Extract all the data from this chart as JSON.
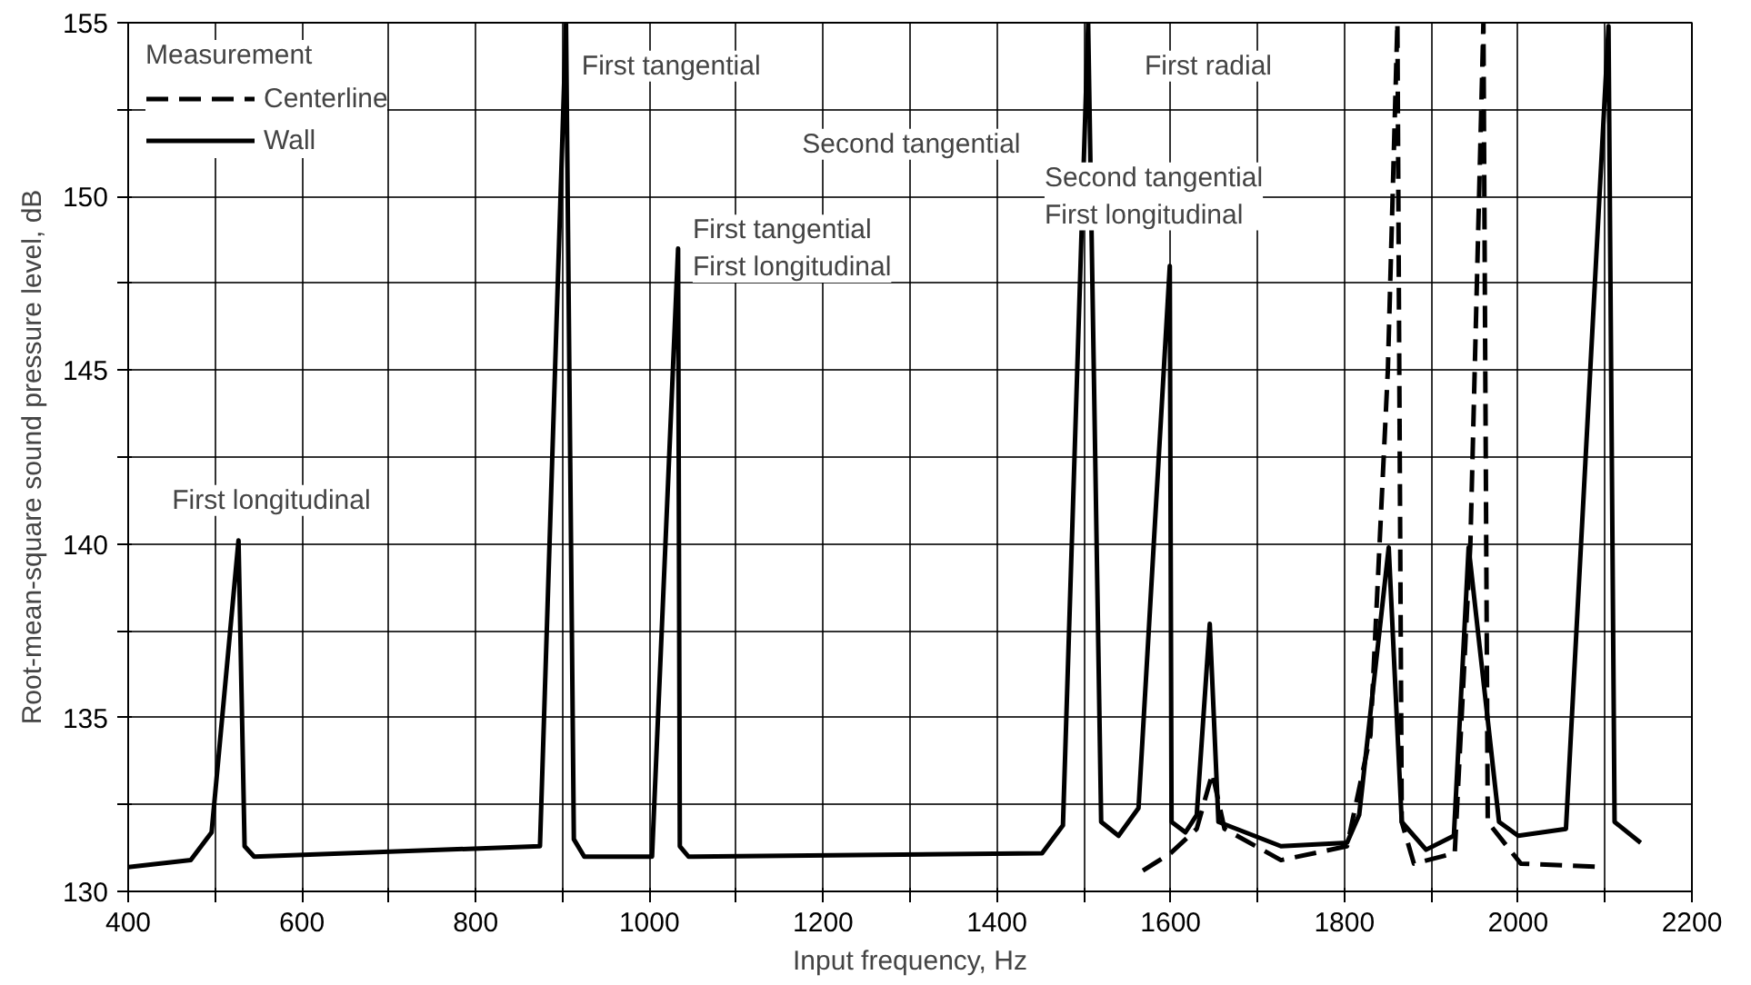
{
  "chart_data": {
    "type": "line",
    "xlabel": "Input frequency, Hz",
    "ylabel": "Root-mean-square sound pressure level, dB",
    "legend_title": "Measurement",
    "legend": "top left",
    "grid": true,
    "marker": "none",
    "xlim": [
      400,
      2200
    ],
    "ylim": [
      130,
      155
    ],
    "xticks": [
      400,
      {
        "value": 500,
        "label": null
      },
      600,
      {
        "value": 700,
        "label": null
      },
      800,
      {
        "value": 900,
        "label": null
      },
      1000,
      {
        "value": 1100,
        "label": null
      },
      1200,
      {
        "value": 1300,
        "label": null
      },
      1400,
      {
        "value": 1500,
        "label": null
      },
      1600,
      {
        "value": 1700,
        "label": null
      },
      1800,
      {
        "value": 1900,
        "label": null
      },
      2000,
      {
        "value": 2100,
        "label": null
      },
      2200
    ],
    "yticks": [
      130,
      {
        "value": 132.5,
        "label": null
      },
      135,
      {
        "value": 137.5,
        "label": null
      },
      140,
      {
        "value": 142.5,
        "label": null
      },
      145,
      {
        "value": 147.5,
        "label": null
      },
      150,
      {
        "value": 152.5,
        "label": null
      },
      155
    ],
    "series": [
      {
        "name": "Centerline",
        "color": "#000000",
        "line_style": "dashed",
        "x": [
          1568,
          1600,
          1630,
          1648,
          1662,
          1727,
          1803,
          1830,
          1850,
          1861,
          1866,
          1880,
          1927,
          1945,
          1960,
          1965,
          2003,
          2100
        ],
        "values": [
          130.6,
          131.1,
          131.8,
          133.4,
          131.8,
          130.9,
          131.3,
          134.5,
          145,
          155,
          132,
          130.8,
          131.1,
          140,
          155,
          132,
          130.8,
          130.7
        ]
      },
      {
        "name": "Wall",
        "color": "#000000",
        "line_style": "solid",
        "x": [
          400,
          472,
          496,
          527,
          534,
          545,
          874,
          904,
          913,
          925,
          1003,
          1033,
          1035,
          1045,
          1452,
          1476,
          1505,
          1520,
          1540,
          1563,
          1599,
          1601,
          1617,
          1630,
          1645,
          1655,
          1727,
          1803,
          1817,
          1851,
          1866,
          1894,
          1926,
          1943,
          1978,
          2000,
          2055,
          2104,
          2111,
          2141
        ],
        "values": [
          130.7,
          130.9,
          131.7,
          140.1,
          131.3,
          131.0,
          131.3,
          155,
          131.5,
          131.0,
          131.0,
          148.5,
          131.3,
          131.0,
          131.1,
          131.9,
          155,
          132.0,
          131.6,
          132.4,
          148.0,
          132.0,
          131.7,
          132.2,
          137.7,
          132.0,
          131.3,
          131.4,
          132.2,
          139.9,
          132.0,
          131.2,
          131.6,
          139.9,
          132.0,
          131.6,
          131.8,
          154.9,
          132.0,
          131.4
        ]
      }
    ],
    "annotations": [
      "First longitudinal",
      "First tangential",
      "First tangential\nFirst longitudinal",
      "Second tangential",
      "Second tangential\nFirst longitudinal",
      "First radial"
    ]
  }
}
